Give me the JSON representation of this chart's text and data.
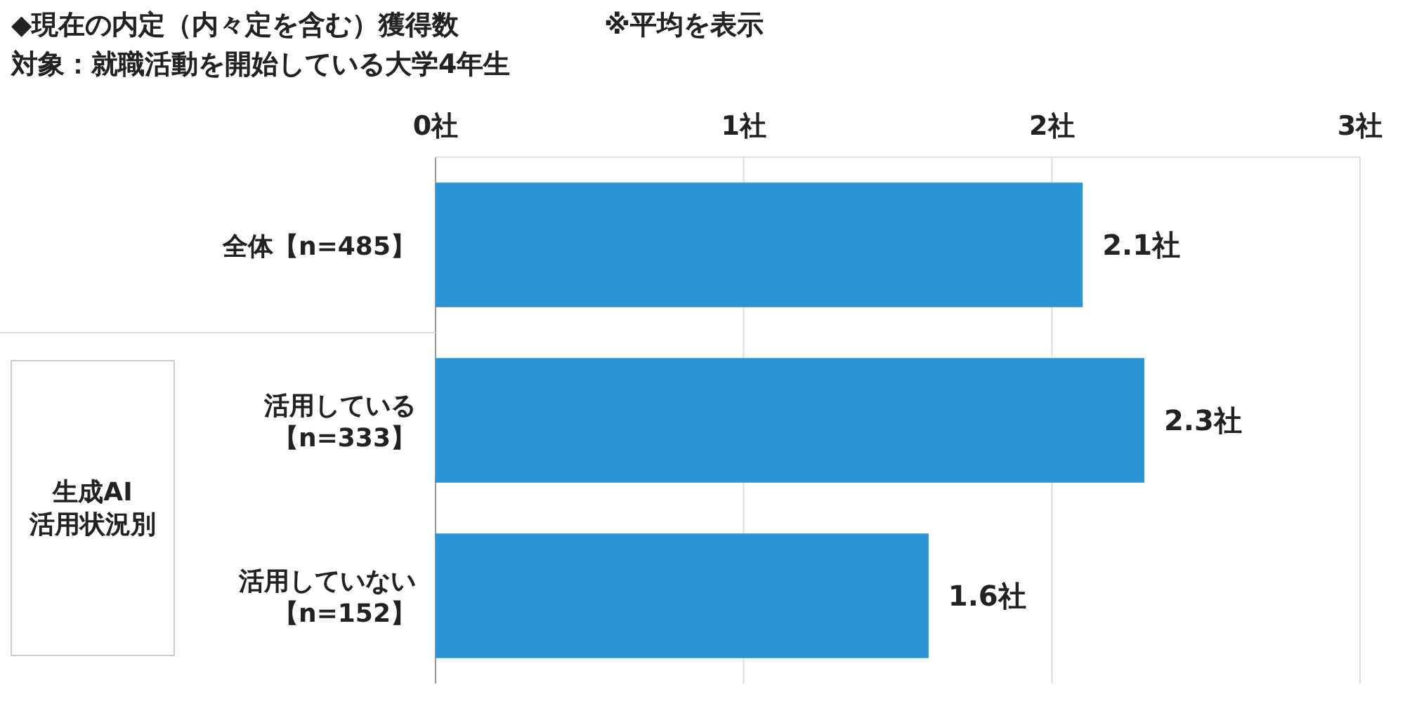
{
  "chart_data": {
    "type": "bar",
    "orientation": "horizontal",
    "title": "◆現在の内定（内々定を含む）獲得数",
    "subtitle": "対象：就職活動を開始している大学4年生",
    "annotations": [
      "※平均を表示",
      "生成AI活用状況別"
    ],
    "categories": [
      "全体【n=485】",
      "活用している【n=333】",
      "活用していない【n=152】"
    ],
    "values": [
      2.1,
      2.3,
      1.6
    ],
    "value_labels": [
      "2.1社",
      "2.3社",
      "1.6社"
    ],
    "color": "#2b94d6",
    "xlim": [
      0,
      3
    ],
    "xticks": [
      {
        "value": 0,
        "label": "0社"
      },
      {
        "value": 1,
        "label": "1社"
      },
      {
        "value": 2,
        "label": "2社"
      },
      {
        "value": 3,
        "label": "3社"
      }
    ],
    "grid": "x"
  }
}
